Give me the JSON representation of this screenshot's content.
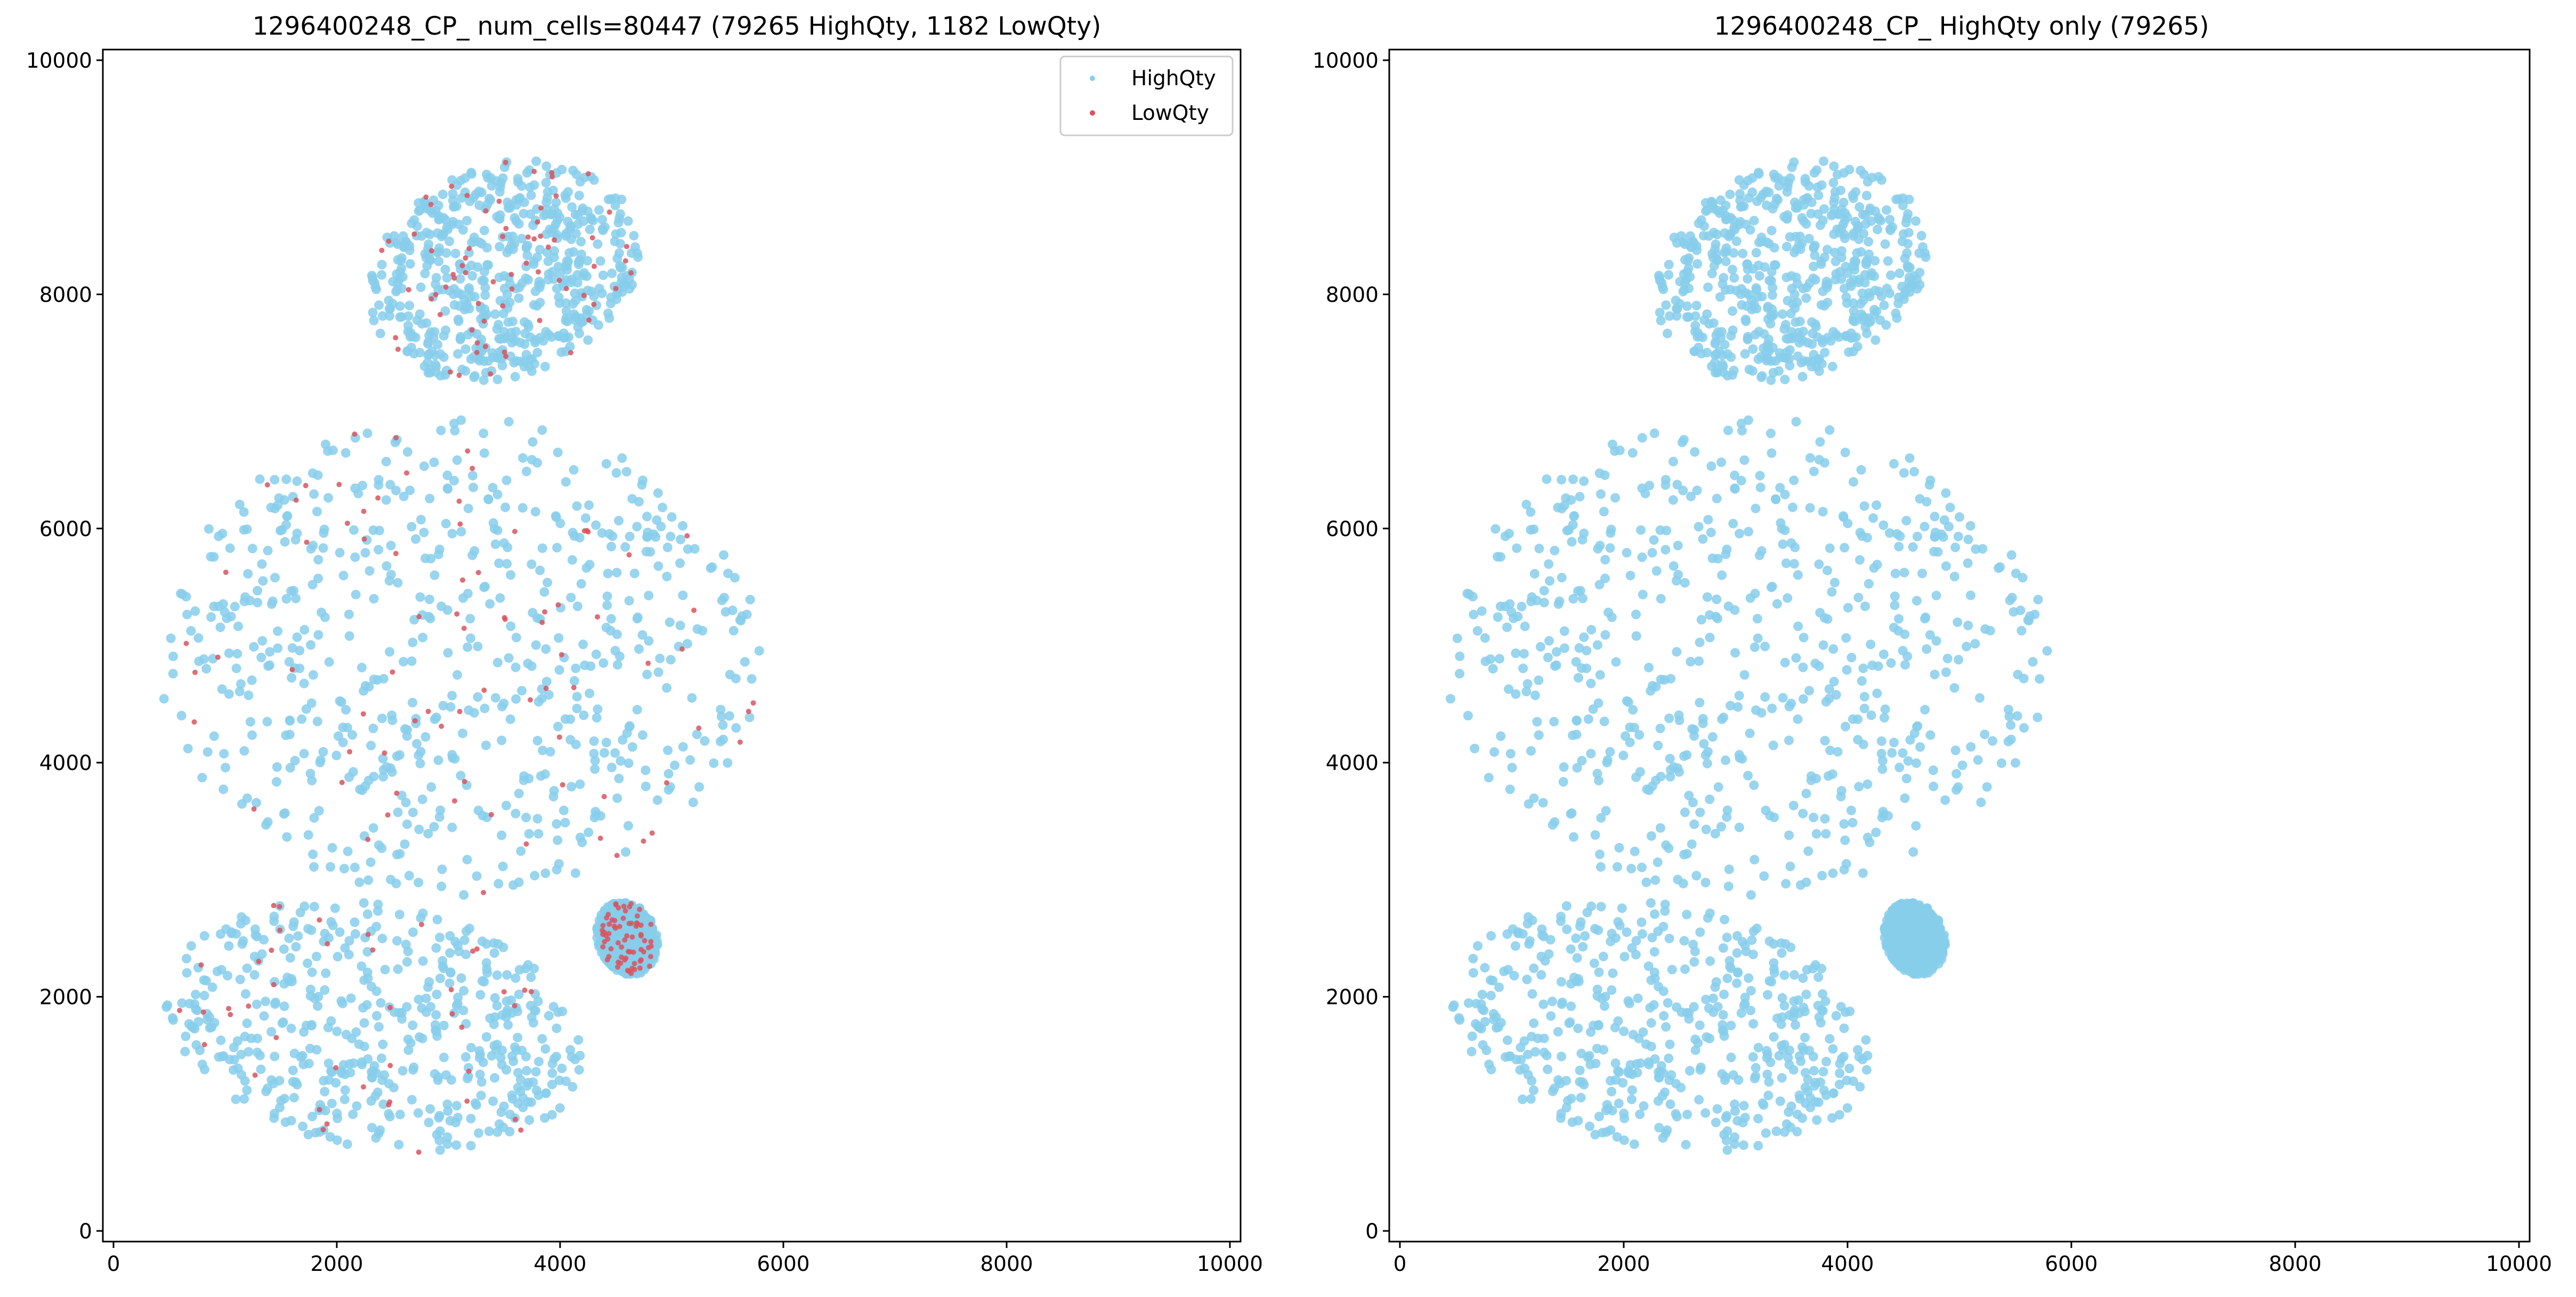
{
  "colors": {
    "highqty": "#87CEEB",
    "lowqty": "#D9535F"
  },
  "chart_data": [
    {
      "type": "scatter",
      "title": "1296400248_CP_ num_cells=80447 (79265 HighQty, 1182 LowQty)",
      "xlim": [
        0,
        10000
      ],
      "ylim": [
        0,
        10000
      ],
      "x_ticks": [
        0,
        2000,
        4000,
        6000,
        8000,
        10000
      ],
      "y_ticks": [
        0,
        2000,
        4000,
        6000,
        8000,
        10000
      ],
      "grid": false,
      "legend_position": "top-right",
      "series": [
        {
          "name": "HighQty",
          "count": 79265,
          "regions": [
            {
              "cx": 3500,
              "cy": 8200,
              "rx": 1250,
              "ry": 900,
              "rot": 20
            },
            {
              "cx": 3100,
              "cy": 4900,
              "rx": 2700,
              "ry": 2050,
              "rot": 0
            },
            {
              "cx": 2350,
              "cy": 1750,
              "rx": 1900,
              "ry": 1050,
              "rot": -10
            },
            {
              "cx": 4600,
              "cy": 2500,
              "rx": 260,
              "ry": 320,
              "rot": 25
            }
          ]
        },
        {
          "name": "LowQty",
          "count": 1182
        }
      ]
    },
    {
      "type": "scatter",
      "title": "1296400248_CP_ HighQty only (79265)",
      "xlim": [
        0,
        10000
      ],
      "ylim": [
        0,
        10000
      ],
      "x_ticks": [
        0,
        2000,
        4000,
        6000,
        8000,
        10000
      ],
      "y_ticks": [
        0,
        2000,
        4000,
        6000,
        8000,
        10000
      ],
      "grid": false,
      "legend_position": "none",
      "series": [
        {
          "name": "HighQty",
          "count": 79265,
          "regions": [
            {
              "cx": 3500,
              "cy": 8200,
              "rx": 1250,
              "ry": 900,
              "rot": 20
            },
            {
              "cx": 3100,
              "cy": 4900,
              "rx": 2700,
              "ry": 2050,
              "rot": 0
            },
            {
              "cx": 2350,
              "cy": 1750,
              "rx": 1900,
              "ry": 1050,
              "rot": -10
            },
            {
              "cx": 4600,
              "cy": 2500,
              "rx": 260,
              "ry": 320,
              "rot": 25
            }
          ]
        }
      ]
    }
  ]
}
